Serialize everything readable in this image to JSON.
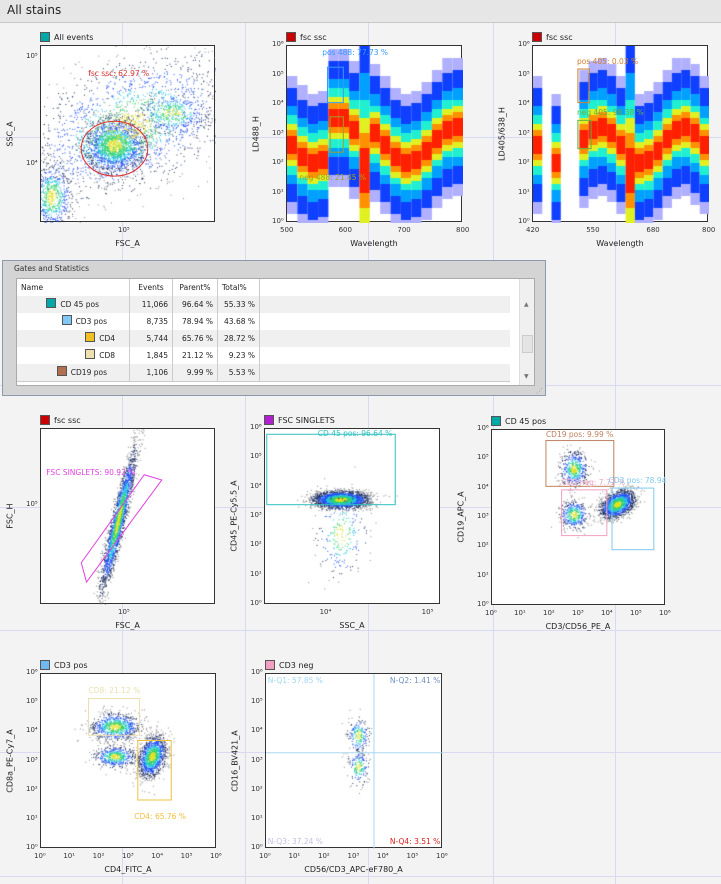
{
  "header": {
    "title": "All stains"
  },
  "colors": {
    "gridline": "#d9d9f2",
    "accent_red": "#cc0000"
  },
  "plots": [
    {
      "legend": "All events",
      "legend_color": "#00a8a8",
      "xlabel": "FSC_A",
      "ylabel": "SSC_A",
      "xticks": [
        "10⁵"
      ],
      "yticks": [
        "10⁵",
        "10⁴"
      ],
      "gates": [
        {
          "label": "fsc ssc: 62.97 %",
          "color": "#e03030"
        }
      ]
    },
    {
      "legend": "fsc ssc",
      "legend_color": "#cc0000",
      "xlabel": "Wavelength",
      "ylabel": "LD488_H",
      "xticks": [
        "500",
        "600",
        "700",
        "800"
      ],
      "yticks": [
        "10⁶",
        "10⁵",
        "10⁴",
        "10³",
        "10²",
        "10¹",
        "10⁰"
      ],
      "gates": [
        {
          "label": "pos 488: 77.73 %",
          "color": "#3399ff"
        },
        {
          "label": "neg 488: 21.45 %",
          "color": "#a0a020"
        }
      ]
    },
    {
      "legend": "fsc ssc",
      "legend_color": "#cc0000",
      "xlabel": "Wavelength",
      "ylabel": "LD405/638_H",
      "xticks": [
        "420",
        "550",
        "680",
        "800"
      ],
      "yticks": [
        "10⁶",
        "10⁵",
        "10⁴",
        "10³",
        "10²",
        "10¹",
        "10⁰"
      ],
      "gates": [
        {
          "label": "pos 405: 0.03 %",
          "color": "#d08030"
        },
        {
          "label": "neg 405: 98.38 %",
          "color": "#60b040"
        }
      ]
    },
    {
      "legend": "fsc ssc",
      "legend_color": "#cc0000",
      "xlabel": "FSC_A",
      "ylabel": "FSC_H",
      "xticks": [
        "10⁵"
      ],
      "yticks": [
        "10⁵"
      ],
      "gates": [
        {
          "label": "FSC SINGLETS: 90.92 %",
          "color": "#e040e0"
        }
      ]
    },
    {
      "legend": "FSC SINGLETS",
      "legend_color": "#b020d0",
      "xlabel": "SSC_A",
      "ylabel": "CD45_PE-Cy5.5_A",
      "xticks": [
        "10⁴",
        "10⁵"
      ],
      "yticks": [
        "10⁶",
        "10⁵",
        "10⁴",
        "10³",
        "10²",
        "10¹",
        "10⁰"
      ],
      "gates": [
        {
          "label": "CD 45 pos: 96.64 %",
          "color": "#30c0c0"
        }
      ]
    },
    {
      "legend": "CD 45 pos",
      "legend_color": "#00a8a8",
      "xlabel": "CD3/CD56_PE_A",
      "ylabel": "CD19_APC_A",
      "xticks": [
        "10⁰",
        "10¹",
        "10²",
        "10³",
        "10⁴",
        "10⁵",
        "10⁶"
      ],
      "yticks": [
        "10⁶",
        "10⁵",
        "10⁴",
        "10³",
        "10²",
        "10¹",
        "10⁰"
      ],
      "gates": [
        {
          "label": "CD19 pos: 9.99 %",
          "color": "#c08060"
        },
        {
          "label": "CD3 neg: 7.72 %",
          "color": "#f0a0c0"
        },
        {
          "label": "CD3 pos: 78.94",
          "color": "#80c8f0"
        }
      ]
    },
    {
      "legend": "CD3 pos",
      "legend_color": "#70b8f0",
      "xlabel": "CD4_FITC_A",
      "ylabel": "CD8a_PE-Cy7_A",
      "xticks": [
        "10⁰",
        "10¹",
        "10²",
        "10³",
        "10⁴",
        "10⁵",
        "10⁶"
      ],
      "yticks": [
        "10⁶",
        "10⁵",
        "10⁴",
        "10³",
        "10²",
        "10¹",
        "10⁰"
      ],
      "gates": [
        {
          "label": "CD8: 21.12 %",
          "color": "#ece0b0"
        },
        {
          "label": "CD4: 65.76 %",
          "color": "#f0c040"
        }
      ]
    },
    {
      "legend": "CD3 neg",
      "legend_color": "#f0a0c0",
      "xlabel": "CD56/CD3_APC-eF780_A",
      "ylabel": "CD16_BV421_A",
      "xticks": [
        "10⁰",
        "10¹",
        "10²",
        "10³",
        "10⁴",
        "10⁵",
        "10⁶"
      ],
      "yticks": [
        "10⁶",
        "10⁵",
        "10⁴",
        "10³",
        "10²",
        "10¹",
        "10⁰"
      ],
      "gates": [
        {
          "label": "N-Q1: 57.85 %",
          "color": "#a0d8f0"
        },
        {
          "label": "N-Q2: 1.41 %",
          "color": "#7090c0"
        },
        {
          "label": "N-Q3: 37.24 %",
          "color": "#c0c0e8"
        },
        {
          "label": "N-Q4: 3.51 %",
          "color": "#e02020"
        }
      ]
    }
  ],
  "stats_panel": {
    "title": "Gates and Statistics",
    "columns": [
      "Name",
      "Events",
      "Parent%",
      "Total%"
    ],
    "rows": [
      {
        "name": "CD 45 pos",
        "color": "#00a8a8",
        "events": "11,066",
        "parent": "96.64 %",
        "total": "55.33 %"
      },
      {
        "name": "CD3 pos",
        "color": "#80c8f8",
        "events": "8,735",
        "parent": "78.94 %",
        "total": "43.68 %"
      },
      {
        "name": "CD4",
        "color": "#f0c020",
        "events": "5,744",
        "parent": "65.76 %",
        "total": "28.72 %"
      },
      {
        "name": "CD8",
        "color": "#ece0b0",
        "events": "1,845",
        "parent": "21.12 %",
        "total": "9.23 %"
      },
      {
        "name": "CD19 pos",
        "color": "#b07050",
        "events": "1,106",
        "parent": "9.99 %",
        "total": "5.53 %"
      }
    ]
  }
}
